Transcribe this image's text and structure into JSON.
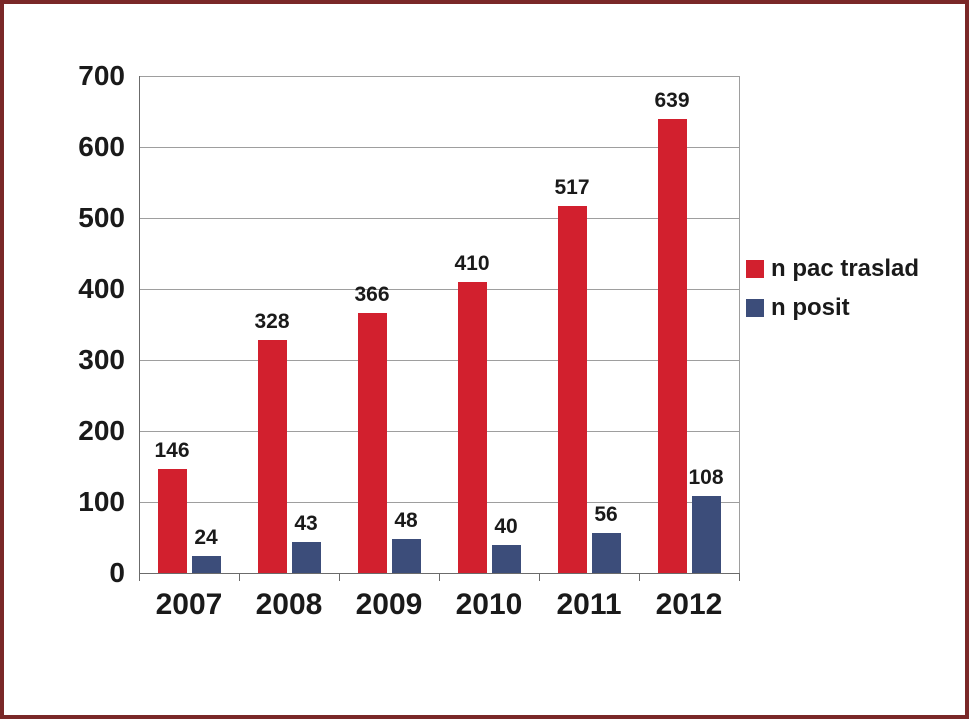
{
  "chart_data": {
    "type": "bar",
    "title": "",
    "xlabel": "",
    "ylabel": "",
    "categories": [
      "2007",
      "2008",
      "2009",
      "2010",
      "2011",
      "2012"
    ],
    "series": [
      {
        "name": "n pac traslad",
        "color": "#d2202e",
        "values": [
          146,
          328,
          366,
          410,
          517,
          639
        ]
      },
      {
        "name": "n posit",
        "color": "#3c4d7a",
        "values": [
          24,
          43,
          48,
          40,
          56,
          108
        ]
      }
    ],
    "ylim": [
      0,
      700
    ],
    "ytick_step": 100,
    "grid": true,
    "legend_position": "right"
  },
  "frame": {
    "border_color": "#7a2828",
    "background": "#ffffff"
  }
}
